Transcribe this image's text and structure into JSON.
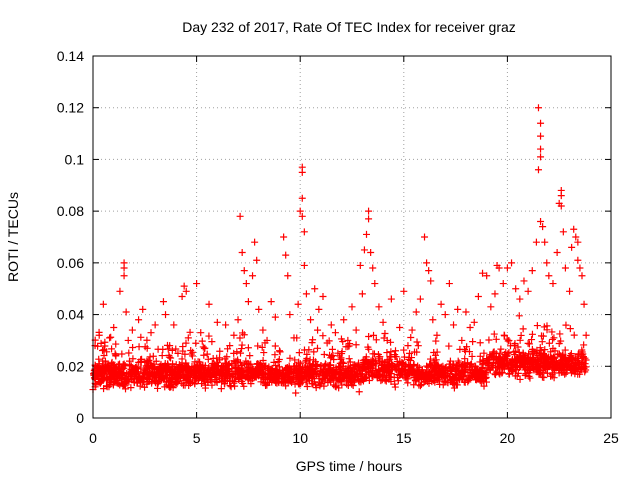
{
  "chart_data": {
    "type": "scatter",
    "title": "Day 232 of 2017, Rate Of TEC Index for receiver graz",
    "xlabel": "GPS time / hours",
    "ylabel": "ROTI / TECUs",
    "xlim": [
      0,
      25
    ],
    "ylim": [
      0,
      0.14
    ],
    "x_ticks": [
      0,
      5,
      10,
      15,
      20,
      25
    ],
    "x_tick_labels": [
      "0",
      "5",
      "10",
      "15",
      "20",
      "25"
    ],
    "y_ticks": [
      0,
      0.02,
      0.04,
      0.06,
      0.08,
      0.1,
      0.12,
      0.14
    ],
    "y_tick_labels": [
      "0",
      "0.02",
      "0.04",
      "0.06",
      "0.08",
      "0.1",
      "0.12",
      "0.14"
    ],
    "grid": true,
    "marker": "plus",
    "color": "#ff0000",
    "series": [
      {
        "points": [
          [
            0.0,
            0.011
          ],
          [
            0.1,
            0.028
          ],
          [
            0.2,
            0.018
          ],
          [
            0.3,
            0.032
          ],
          [
            0.4,
            0.014
          ],
          [
            0.5,
            0.044
          ],
          [
            0.6,
            0.022
          ],
          [
            0.8,
            0.031
          ],
          [
            0.9,
            0.015
          ],
          [
            1.0,
            0.035
          ],
          [
            1.1,
            0.024
          ],
          [
            1.3,
            0.049
          ],
          [
            1.4,
            0.019
          ],
          [
            1.5,
            0.06
          ],
          [
            1.5,
            0.058
          ],
          [
            1.5,
            0.055
          ],
          [
            1.6,
            0.041
          ],
          [
            1.7,
            0.03
          ],
          [
            1.9,
            0.034
          ],
          [
            2.0,
            0.016
          ],
          [
            2.2,
            0.038
          ],
          [
            2.4,
            0.042
          ],
          [
            2.6,
            0.022
          ],
          [
            2.8,
            0.033
          ],
          [
            3.0,
            0.036
          ],
          [
            3.2,
            0.019
          ],
          [
            3.4,
            0.045
          ],
          [
            3.5,
            0.04
          ],
          [
            3.7,
            0.028
          ],
          [
            3.9,
            0.036
          ],
          [
            4.1,
            0.025
          ],
          [
            4.3,
            0.047
          ],
          [
            4.4,
            0.051
          ],
          [
            4.5,
            0.049
          ],
          [
            4.6,
            0.031
          ],
          [
            4.8,
            0.024
          ],
          [
            5.0,
            0.052
          ],
          [
            5.2,
            0.033
          ],
          [
            5.4,
            0.027
          ],
          [
            5.6,
            0.044
          ],
          [
            5.8,
            0.023
          ],
          [
            6.0,
            0.037
          ],
          [
            6.2,
            0.02
          ],
          [
            6.4,
            0.036
          ],
          [
            6.6,
            0.028
          ],
          [
            6.8,
            0.032
          ],
          [
            7.0,
            0.038
          ],
          [
            7.1,
            0.078
          ],
          [
            7.2,
            0.064
          ],
          [
            7.3,
            0.057
          ],
          [
            7.4,
            0.052
          ],
          [
            7.5,
            0.045
          ],
          [
            7.7,
            0.055
          ],
          [
            7.8,
            0.068
          ],
          [
            7.9,
            0.061
          ],
          [
            8.0,
            0.042
          ],
          [
            8.2,
            0.034
          ],
          [
            8.4,
            0.03
          ],
          [
            8.6,
            0.045
          ],
          [
            8.8,
            0.039
          ],
          [
            9.0,
            0.026
          ],
          [
            9.2,
            0.07
          ],
          [
            9.3,
            0.063
          ],
          [
            9.4,
            0.055
          ],
          [
            9.5,
            0.04
          ],
          [
            9.7,
            0.031
          ],
          [
            9.9,
            0.044
          ],
          [
            10.0,
            0.08
          ],
          [
            10.1,
            0.097
          ],
          [
            10.1,
            0.095
          ],
          [
            10.1,
            0.085
          ],
          [
            10.1,
            0.078
          ],
          [
            10.2,
            0.072
          ],
          [
            10.2,
            0.059
          ],
          [
            10.3,
            0.048
          ],
          [
            10.5,
            0.038
          ],
          [
            10.7,
            0.05
          ],
          [
            10.9,
            0.042
          ],
          [
            11.1,
            0.047
          ],
          [
            11.3,
            0.029
          ],
          [
            11.5,
            0.036
          ],
          [
            11.7,
            0.033
          ],
          [
            11.9,
            0.024
          ],
          [
            12.1,
            0.038
          ],
          [
            12.3,
            0.03
          ],
          [
            12.5,
            0.043
          ],
          [
            12.7,
            0.034
          ],
          [
            12.9,
            0.059
          ],
          [
            13.0,
            0.048
          ],
          [
            13.1,
            0.065
          ],
          [
            13.2,
            0.071
          ],
          [
            13.3,
            0.08
          ],
          [
            13.3,
            0.077
          ],
          [
            13.4,
            0.064
          ],
          [
            13.5,
            0.058
          ],
          [
            13.6,
            0.052
          ],
          [
            13.8,
            0.043
          ],
          [
            14.0,
            0.037
          ],
          [
            14.2,
            0.03
          ],
          [
            14.4,
            0.046
          ],
          [
            14.6,
            0.026
          ],
          [
            14.8,
            0.035
          ],
          [
            15.0,
            0.049
          ],
          [
            15.2,
            0.028
          ],
          [
            15.4,
            0.034
          ],
          [
            15.6,
            0.041
          ],
          [
            15.8,
            0.046
          ],
          [
            16.0,
            0.07
          ],
          [
            16.1,
            0.06
          ],
          [
            16.2,
            0.057
          ],
          [
            16.3,
            0.053
          ],
          [
            16.4,
            0.038
          ],
          [
            16.6,
            0.032
          ],
          [
            16.8,
            0.044
          ],
          [
            17.0,
            0.04
          ],
          [
            17.2,
            0.052
          ],
          [
            17.4,
            0.036
          ],
          [
            17.6,
            0.042
          ],
          [
            17.8,
            0.03
          ],
          [
            18.0,
            0.041
          ],
          [
            18.2,
            0.035
          ],
          [
            18.4,
            0.037
          ],
          [
            18.6,
            0.047
          ],
          [
            18.8,
            0.056
          ],
          [
            19.0,
            0.055
          ],
          [
            19.2,
            0.043
          ],
          [
            19.4,
            0.048
          ],
          [
            19.5,
            0.059
          ],
          [
            19.6,
            0.058
          ],
          [
            19.8,
            0.052
          ],
          [
            20.0,
            0.058
          ],
          [
            20.2,
            0.06
          ],
          [
            20.4,
            0.05
          ],
          [
            20.6,
            0.046
          ],
          [
            20.8,
            0.053
          ],
          [
            21.0,
            0.049
          ],
          [
            21.2,
            0.057
          ],
          [
            21.4,
            0.068
          ],
          [
            21.5,
            0.12
          ],
          [
            21.6,
            0.114
          ],
          [
            21.6,
            0.109
          ],
          [
            21.6,
            0.104
          ],
          [
            21.6,
            0.101
          ],
          [
            21.5,
            0.096
          ],
          [
            21.6,
            0.076
          ],
          [
            21.7,
            0.074
          ],
          [
            21.8,
            0.068
          ],
          [
            21.9,
            0.06
          ],
          [
            22.0,
            0.055
          ],
          [
            22.2,
            0.052
          ],
          [
            22.4,
            0.064
          ],
          [
            22.5,
            0.083
          ],
          [
            22.6,
            0.088
          ],
          [
            22.6,
            0.086
          ],
          [
            22.6,
            0.082
          ],
          [
            22.7,
            0.072
          ],
          [
            22.8,
            0.058
          ],
          [
            23.0,
            0.049
          ],
          [
            23.1,
            0.066
          ],
          [
            23.2,
            0.073
          ],
          [
            23.3,
            0.07
          ],
          [
            23.4,
            0.068
          ],
          [
            23.4,
            0.061
          ],
          [
            23.5,
            0.058
          ],
          [
            23.6,
            0.055
          ],
          [
            23.7,
            0.044
          ],
          [
            23.8,
            0.032
          ]
        ]
      }
    ]
  }
}
